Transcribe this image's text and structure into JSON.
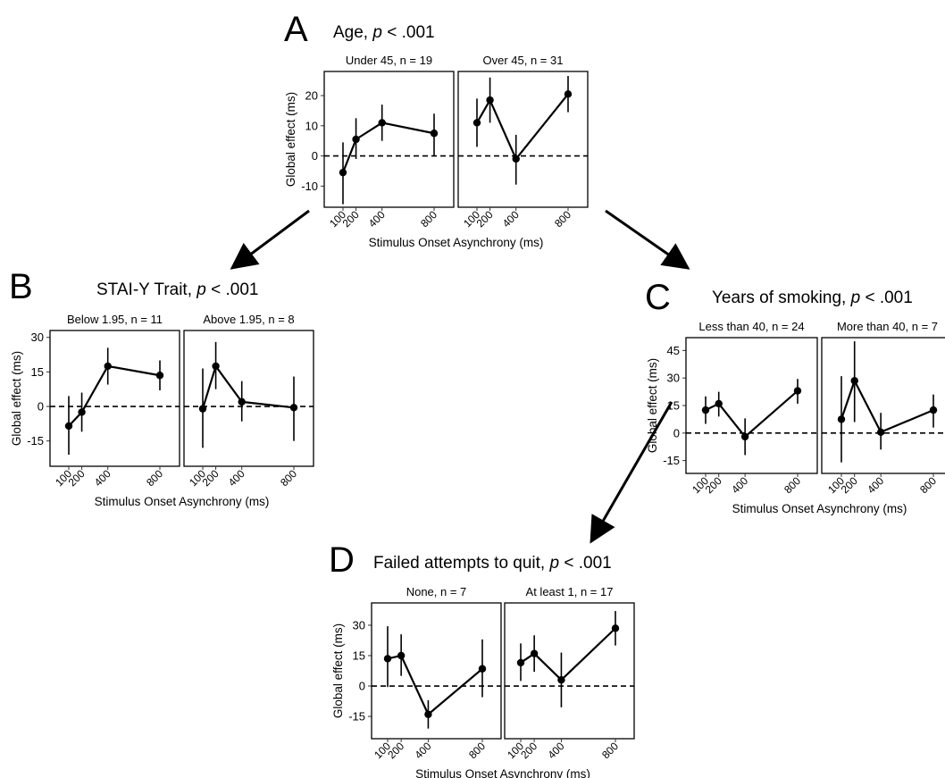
{
  "chart_data": [
    {
      "letter": "A",
      "title_prefix": "Age, ",
      "title_p": "p",
      "title_suffix": " < .001",
      "type": "line",
      "xlabel": "Stimulus Onset Asynchrony (ms)",
      "ylabel": "Global effect (ms)",
      "x": [
        100,
        200,
        400,
        800
      ],
      "x_tick_labels": [
        "100",
        "200",
        "400",
        "800"
      ],
      "ylim": [
        -17,
        28
      ],
      "y_ticks": [
        -10,
        0,
        10,
        20
      ],
      "y_tick_labels": [
        "-10",
        "0",
        "10",
        "20"
      ],
      "reference_line": 0,
      "facets": [
        {
          "label": "Under 45, n = 19",
          "values": [
            -5.5,
            5.5,
            11,
            7.5
          ],
          "lower": [
            -16,
            -1,
            5,
            0
          ],
          "upper": [
            4.5,
            12.5,
            17,
            14
          ]
        },
        {
          "label": "Over 45, n = 31",
          "values": [
            11,
            18.5,
            -1,
            20.5
          ],
          "lower": [
            3,
            11,
            -9.5,
            14.5
          ],
          "upper": [
            19,
            26,
            7,
            26.5
          ]
        }
      ]
    },
    {
      "letter": "B",
      "title_prefix": "STAI-Y Trait, ",
      "title_p": "p",
      "title_suffix": " < .001",
      "type": "line",
      "xlabel": "Stimulus Onset Asynchrony (ms)",
      "ylabel": "Global effect (ms)",
      "x": [
        100,
        200,
        400,
        800
      ],
      "x_tick_labels": [
        "100",
        "200",
        "400",
        "800"
      ],
      "ylim": [
        -26,
        33
      ],
      "y_ticks": [
        -15,
        0,
        15,
        30
      ],
      "y_tick_labels": [
        "-15",
        "0",
        "15",
        "30"
      ],
      "reference_line": 0,
      "facets": [
        {
          "label": "Below 1.95, n = 11",
          "values": [
            -8.5,
            -2.5,
            17.5,
            13.5
          ],
          "lower": [
            -21,
            -11,
            9.5,
            7
          ],
          "upper": [
            4.5,
            6,
            25.5,
            20
          ]
        },
        {
          "label": "Above 1.95, n = 8",
          "values": [
            -1,
            17.5,
            2,
            -0.5
          ],
          "lower": [
            -18,
            7.5,
            -6.5,
            -15
          ],
          "upper": [
            16.5,
            28,
            11,
            13
          ]
        }
      ]
    },
    {
      "letter": "C",
      "title_prefix": "Years of smoking, ",
      "title_p": "p",
      "title_suffix": " < .001",
      "type": "line",
      "xlabel": "Stimulus Onset Asynchrony (ms)",
      "ylabel": "Global effect (ms)",
      "x": [
        100,
        200,
        400,
        800
      ],
      "x_tick_labels": [
        "100",
        "200",
        "400",
        "800"
      ],
      "ylim": [
        -22,
        52
      ],
      "y_ticks": [
        -15,
        0,
        15,
        30,
        45
      ],
      "y_tick_labels": [
        "-15",
        "0",
        "15",
        "30",
        "45"
      ],
      "reference_line": 0,
      "facets": [
        {
          "label": "Less than 40, n = 24",
          "values": [
            12.5,
            16,
            -2,
            23
          ],
          "lower": [
            5,
            9,
            -12,
            16
          ],
          "upper": [
            20,
            22.5,
            8,
            29.5
          ]
        },
        {
          "label": "More than 40, n = 7",
          "values": [
            7.5,
            28.5,
            0.5,
            12.5
          ],
          "lower": [
            -16,
            6,
            -9,
            3
          ],
          "upper": [
            31,
            50,
            11,
            21
          ]
        }
      ]
    },
    {
      "letter": "D",
      "title_prefix": "Failed attempts to quit, ",
      "title_p": "p",
      "title_suffix": " < .001",
      "type": "line",
      "xlabel": "Stimulus Onset Asynchrony (ms)",
      "ylabel": "Global effect (ms)",
      "x": [
        100,
        200,
        400,
        800
      ],
      "x_tick_labels": [
        "100",
        "200",
        "400",
        "800"
      ],
      "ylim": [
        -26,
        41
      ],
      "y_ticks": [
        -15,
        0,
        15,
        30
      ],
      "y_tick_labels": [
        "-15",
        "0",
        "15",
        "30"
      ],
      "reference_line": 0,
      "facets": [
        {
          "label": "None, n = 7",
          "values": [
            13.5,
            15,
            -14,
            8.5
          ],
          "lower": [
            -0.5,
            5,
            -21,
            -5.5
          ],
          "upper": [
            29.5,
            25.5,
            -7,
            23
          ]
        },
        {
          "label": "At least 1, n = 17",
          "values": [
            11.5,
            16,
            3,
            28.5
          ],
          "lower": [
            2.5,
            7,
            -10.5,
            20
          ],
          "upper": [
            21,
            25,
            16.5,
            37
          ]
        }
      ]
    }
  ]
}
